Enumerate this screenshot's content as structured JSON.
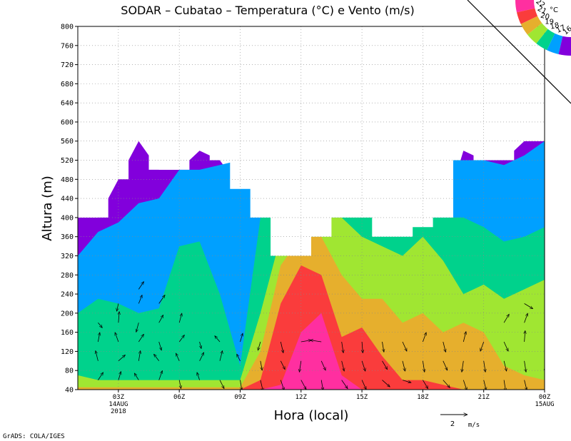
{
  "chart_data": {
    "type": "heatmap",
    "title": "SODAR – Cubatao – Temperatura (°C) e Vento (m/s)",
    "xlabel": "Hora (local)",
    "ylabel": "Altura (m)",
    "ylim": [
      40,
      800
    ],
    "yticks": [
      40,
      80,
      120,
      160,
      200,
      240,
      280,
      320,
      360,
      400,
      440,
      480,
      520,
      560,
      600,
      640,
      680,
      720,
      760,
      800
    ],
    "xlim": [
      0,
      23
    ],
    "x_ticks": [
      {
        "hour": 2,
        "label": "03Z",
        "date": "14AUG",
        "year": "2018"
      },
      {
        "hour": 5,
        "label": "06Z"
      },
      {
        "hour": 8,
        "label": "09Z"
      },
      {
        "hour": 11,
        "label": "12Z"
      },
      {
        "hour": 14,
        "label": "15Z"
      },
      {
        "hour": 17,
        "label": "18Z"
      },
      {
        "hour": 20,
        "label": "21Z"
      },
      {
        "hour": 23,
        "label": "00Z",
        "date": "15AUG"
      }
    ],
    "grid": true,
    "legend": {
      "placement": "top-right",
      "unit": "°C",
      "levels": [
        22,
        21,
        20,
        19,
        18,
        17,
        16
      ],
      "colors": [
        "#ff2fa0",
        "#fa3c3c",
        "#e6af2d",
        "#a0e632",
        "#00d28c",
        "#00a0ff",
        "#8200dc"
      ]
    },
    "top_height_m": [
      400,
      400,
      480,
      560,
      500,
      500,
      540,
      520,
      460,
      400,
      320,
      320,
      360,
      400,
      400,
      360,
      360,
      380,
      400,
      540,
      520,
      520,
      560,
      560
    ],
    "temperature_layers_top_m": {
      "22": [
        40,
        40,
        40,
        40,
        40,
        40,
        40,
        40,
        40,
        40,
        50,
        160,
        200,
        70,
        40,
        40,
        40,
        40,
        40,
        40,
        40,
        40,
        40,
        40
      ],
      "21": [
        40,
        40,
        40,
        40,
        40,
        40,
        40,
        40,
        40,
        60,
        220,
        300,
        280,
        150,
        170,
        110,
        60,
        60,
        50,
        40,
        40,
        40,
        40,
        40
      ],
      "20": [
        45,
        45,
        45,
        45,
        45,
        45,
        45,
        45,
        45,
        120,
        300,
        360,
        360,
        280,
        230,
        230,
        180,
        200,
        160,
        180,
        160,
        90,
        70,
        60
      ],
      "19": [
        70,
        60,
        60,
        60,
        60,
        60,
        60,
        60,
        60,
        200,
        360,
        400,
        400,
        400,
        360,
        340,
        320,
        360,
        310,
        240,
        260,
        230,
        250,
        270
      ],
      "18": [
        200,
        230,
        220,
        200,
        210,
        340,
        350,
        240,
        90,
        400,
        400,
        420,
        430,
        470,
        420,
        400,
        400,
        400,
        400,
        400,
        380,
        350,
        360,
        380
      ],
      "17": [
        320,
        370,
        390,
        430,
        440,
        500,
        500,
        510,
        520,
        520,
        520,
        520,
        520,
        520,
        520,
        520,
        520,
        520,
        520,
        520,
        520,
        510,
        530,
        560
      ],
      "16": [
        400,
        400,
        480,
        560,
        500,
        500,
        540,
        520,
        460,
        400,
        320,
        320,
        360,
        400,
        400,
        360,
        360,
        380,
        400,
        540,
        520,
        520,
        560,
        560
      ]
    },
    "wind_vectors": {
      "unit": "m/s",
      "reference_value": 2,
      "reference_label": "2",
      "reference_unit": "m/s",
      "samples": [
        {
          "hour": 1,
          "heights": [
            60,
            100,
            140,
            180
          ],
          "u": [
            0.6,
            -0.3,
            0.2,
            0.5
          ],
          "v": [
            0.9,
            1.2,
            1.1,
            -0.6
          ]
        },
        {
          "hour": 2,
          "heights": [
            60,
            100,
            140,
            180,
            220
          ],
          "u": [
            0.3,
            0.8,
            -0.4,
            0.1,
            -0.2
          ],
          "v": [
            1.0,
            0.7,
            1.1,
            1.3,
            -0.9
          ]
        },
        {
          "hour": 3,
          "heights": [
            60,
            100,
            140,
            180,
            220,
            250
          ],
          "u": [
            -0.5,
            0.2,
            0.6,
            -0.3,
            0.4,
            0.6
          ],
          "v": [
            0.8,
            1.2,
            0.9,
            -1.1,
            1.0,
            0.9
          ]
        },
        {
          "hour": 4,
          "heights": [
            60,
            100,
            140,
            180,
            220
          ],
          "u": [
            0.4,
            -0.6,
            0.3,
            0.5,
            0.7
          ],
          "v": [
            1.1,
            0.8,
            -1.0,
            0.9,
            1.0
          ]
        },
        {
          "hour": 5,
          "heights": [
            60,
            100,
            140,
            180
          ],
          "u": [
            0.2,
            -0.4,
            0.6,
            0.3
          ],
          "v": [
            -1.0,
            0.9,
            0.8,
            1.1
          ]
        },
        {
          "hour": 6,
          "heights": [
            60,
            100,
            140
          ],
          "u": [
            -0.3,
            0.5,
            0.2
          ],
          "v": [
            0.9,
            1.0,
            -0.8
          ]
        },
        {
          "hour": 7,
          "heights": [
            60,
            100,
            140
          ],
          "u": [
            0.5,
            0.3,
            -0.6
          ],
          "v": [
            -1.0,
            1.2,
            0.7
          ]
        },
        {
          "hour": 8,
          "heights": [
            60,
            100,
            140
          ],
          "u": [
            0.2,
            -0.4,
            0.3
          ],
          "v": [
            -1.2,
            0.8,
            1.0
          ]
        },
        {
          "hour": 9,
          "heights": [
            60,
            100,
            140
          ],
          "u": [
            0.3,
            0.2,
            -0.3
          ],
          "v": [
            -1.3,
            -1.1,
            -1.0
          ]
        },
        {
          "hour": 10,
          "heights": [
            60,
            100,
            140
          ],
          "u": [
            0.4,
            0.5,
            0.3
          ],
          "v": [
            -1.2,
            -1.0,
            -1.3
          ]
        },
        {
          "hour": 11,
          "heights": [
            60,
            100,
            140
          ],
          "u": [
            0.6,
            -0.2,
            1.2
          ],
          "v": [
            -1.1,
            -1.3,
            0.2
          ]
        },
        {
          "hour": 12,
          "heights": [
            60,
            100,
            140
          ],
          "u": [
            0.2,
            0.5,
            -1.3
          ],
          "v": [
            -1.2,
            -1.1,
            0.2
          ]
        },
        {
          "hour": 13,
          "heights": [
            60,
            100,
            140
          ],
          "u": [
            0.7,
            0.3,
            0.2
          ],
          "v": [
            -1.0,
            -1.2,
            -1.3
          ]
        },
        {
          "hour": 14,
          "heights": [
            60,
            100,
            140
          ],
          "u": [
            0.5,
            0.4,
            0.1
          ],
          "v": [
            -1.1,
            -1.2,
            -1.3
          ]
        },
        {
          "hour": 15,
          "heights": [
            60,
            100,
            140
          ],
          "u": [
            0.9,
            0.6,
            0.2
          ],
          "v": [
            -0.8,
            -1.0,
            -1.2
          ]
        },
        {
          "hour": 16,
          "heights": [
            60,
            100,
            140
          ],
          "u": [
            1.0,
            0.3,
            0.5
          ],
          "v": [
            -0.3,
            -1.2,
            -1.1
          ]
        },
        {
          "hour": 17,
          "heights": [
            60,
            100,
            140
          ],
          "u": [
            0.6,
            0.2,
            0.4
          ],
          "v": [
            -1.0,
            -1.3,
            1.1
          ]
        },
        {
          "hour": 18,
          "heights": [
            60,
            100,
            140
          ],
          "u": [
            0.8,
            0.5,
            0.3
          ],
          "v": [
            -0.9,
            -1.1,
            -1.2
          ]
        },
        {
          "hour": 19,
          "heights": [
            60,
            100,
            140
          ],
          "u": [
            0.4,
            -0.2,
            0.3
          ],
          "v": [
            -1.2,
            -1.3,
            1.2
          ]
        },
        {
          "hour": 20,
          "heights": [
            60,
            100,
            140
          ],
          "u": [
            0.3,
            0.2,
            -0.4
          ],
          "v": [
            -1.2,
            -1.3,
            -1.1
          ]
        },
        {
          "hour": 21,
          "heights": [
            60,
            100,
            140,
            180
          ],
          "u": [
            0.2,
            0.3,
            0.5,
            0.6
          ],
          "v": [
            -1.3,
            -1.2,
            -1.1,
            1.0
          ]
        },
        {
          "hour": 22,
          "heights": [
            60,
            100,
            140,
            180,
            220
          ],
          "u": [
            0.3,
            0.2,
            0.1,
            0.4,
            1.0
          ],
          "v": [
            -1.2,
            -1.3,
            1.3,
            1.1,
            -0.6
          ]
        },
        {
          "hour": 23,
          "heights": [
            60,
            100,
            140,
            180
          ],
          "u": [
            0.2,
            0.1,
            0.3,
            0.5
          ],
          "v": [
            1.3,
            -1.3,
            1.1,
            1.2
          ]
        }
      ]
    },
    "footer_label": "GrADS: COLA/IGES"
  }
}
